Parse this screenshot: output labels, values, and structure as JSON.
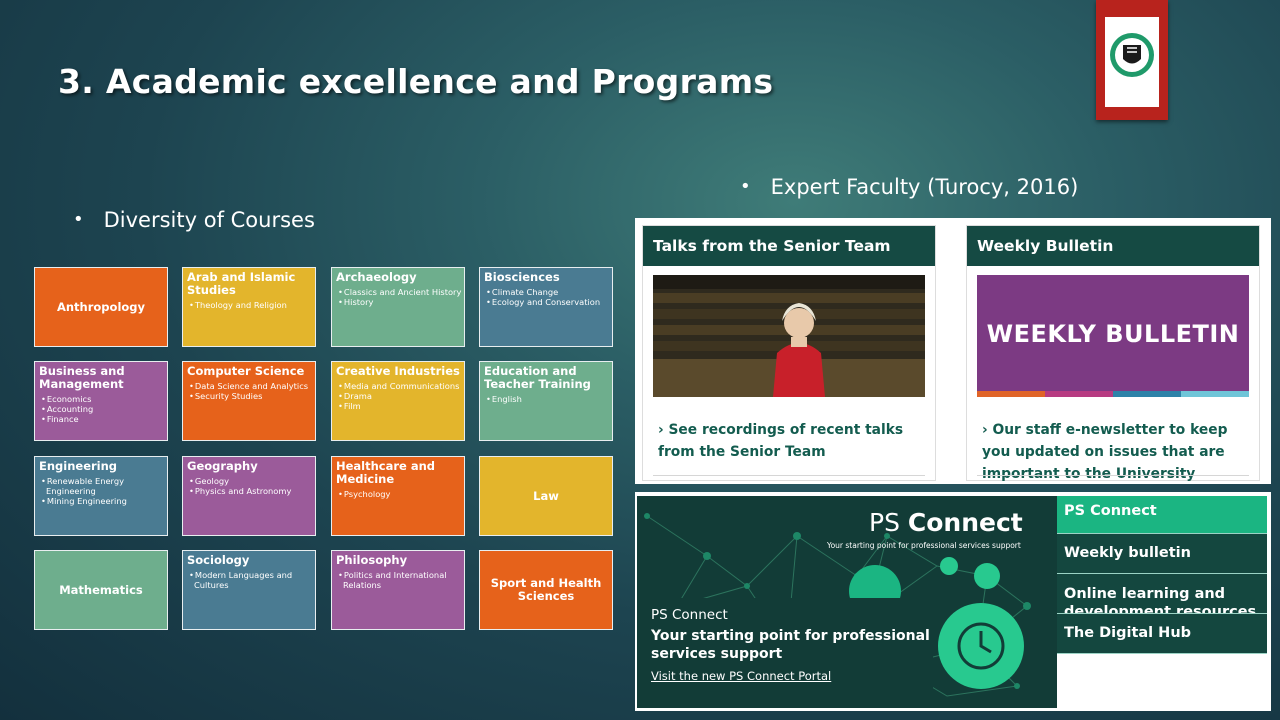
{
  "slide": {
    "title": "3. Academic excellence and Programs",
    "bullet_left": "Diversity of Courses",
    "bullet_right": "Expert Faculty (Turocy, 2016)",
    "logo_name": "university-crest",
    "colors": {
      "orange": "#e6621b",
      "yellow": "#e3b52c",
      "green": "#6eae8d",
      "blue": "#4a7b92",
      "purple": "#9b5b9a",
      "dark_green": "#154a43",
      "ps_accent": "#1bb582"
    }
  },
  "courses": [
    {
      "title": "Anthropology",
      "items": []
    },
    {
      "title": "Arab and Islamic Studies",
      "items": [
        "Theology and Religion"
      ]
    },
    {
      "title": "Archaeology",
      "items": [
        "Classics and Ancient History",
        "History"
      ]
    },
    {
      "title": "Biosciences",
      "items": [
        "Climate Change",
        "Ecology and Conservation"
      ]
    },
    {
      "title": "Business and Management",
      "items": [
        "Economics",
        "Accounting",
        "Finance"
      ]
    },
    {
      "title": "Computer Science",
      "items": [
        "Data Science and Analytics",
        "Security Studies"
      ]
    },
    {
      "title": "Creative Industries",
      "items": [
        "Media and Communications",
        "Drama",
        "Film"
      ]
    },
    {
      "title": "Education and Teacher Training",
      "items": [
        "English"
      ]
    },
    {
      "title": "Engineering",
      "items": [
        "Renewable Energy Engineering",
        "Mining Engineering"
      ]
    },
    {
      "title": "Geography",
      "items": [
        "Geology",
        "Physics and Astronomy"
      ]
    },
    {
      "title": "Healthcare and Medicine",
      "items": [
        "Psychology"
      ]
    },
    {
      "title": "Law",
      "items": []
    },
    {
      "title": "Mathematics",
      "items": []
    },
    {
      "title": "Sociology",
      "items": [
        "Modern Languages and Cultures"
      ]
    },
    {
      "title": "Philosophy",
      "items": [
        "Politics and International Relations"
      ]
    },
    {
      "title": "Sport and Health Sciences",
      "items": []
    }
  ],
  "talks": {
    "header": "Talks from the Senior Team",
    "link": "› See recordings of recent talks from the Senior Team"
  },
  "bulletin": {
    "header": "Weekly Bulletin",
    "image_text": "WEEKLY BULLETIN",
    "link": "› Our staff e-newsletter to keep you updated on issues that are important to the University"
  },
  "ps": {
    "title_light": "PS ",
    "title_bold": "Connect",
    "subtitle": "Your starting point for professional services support",
    "box_label": "PS Connect",
    "box_heading": "Your starting point for professional services support",
    "box_link": "Visit the new PS Connect Portal",
    "menu": [
      "PS Connect",
      "Weekly bulletin",
      "Online learning and development resources",
      "The Digital Hub"
    ]
  }
}
